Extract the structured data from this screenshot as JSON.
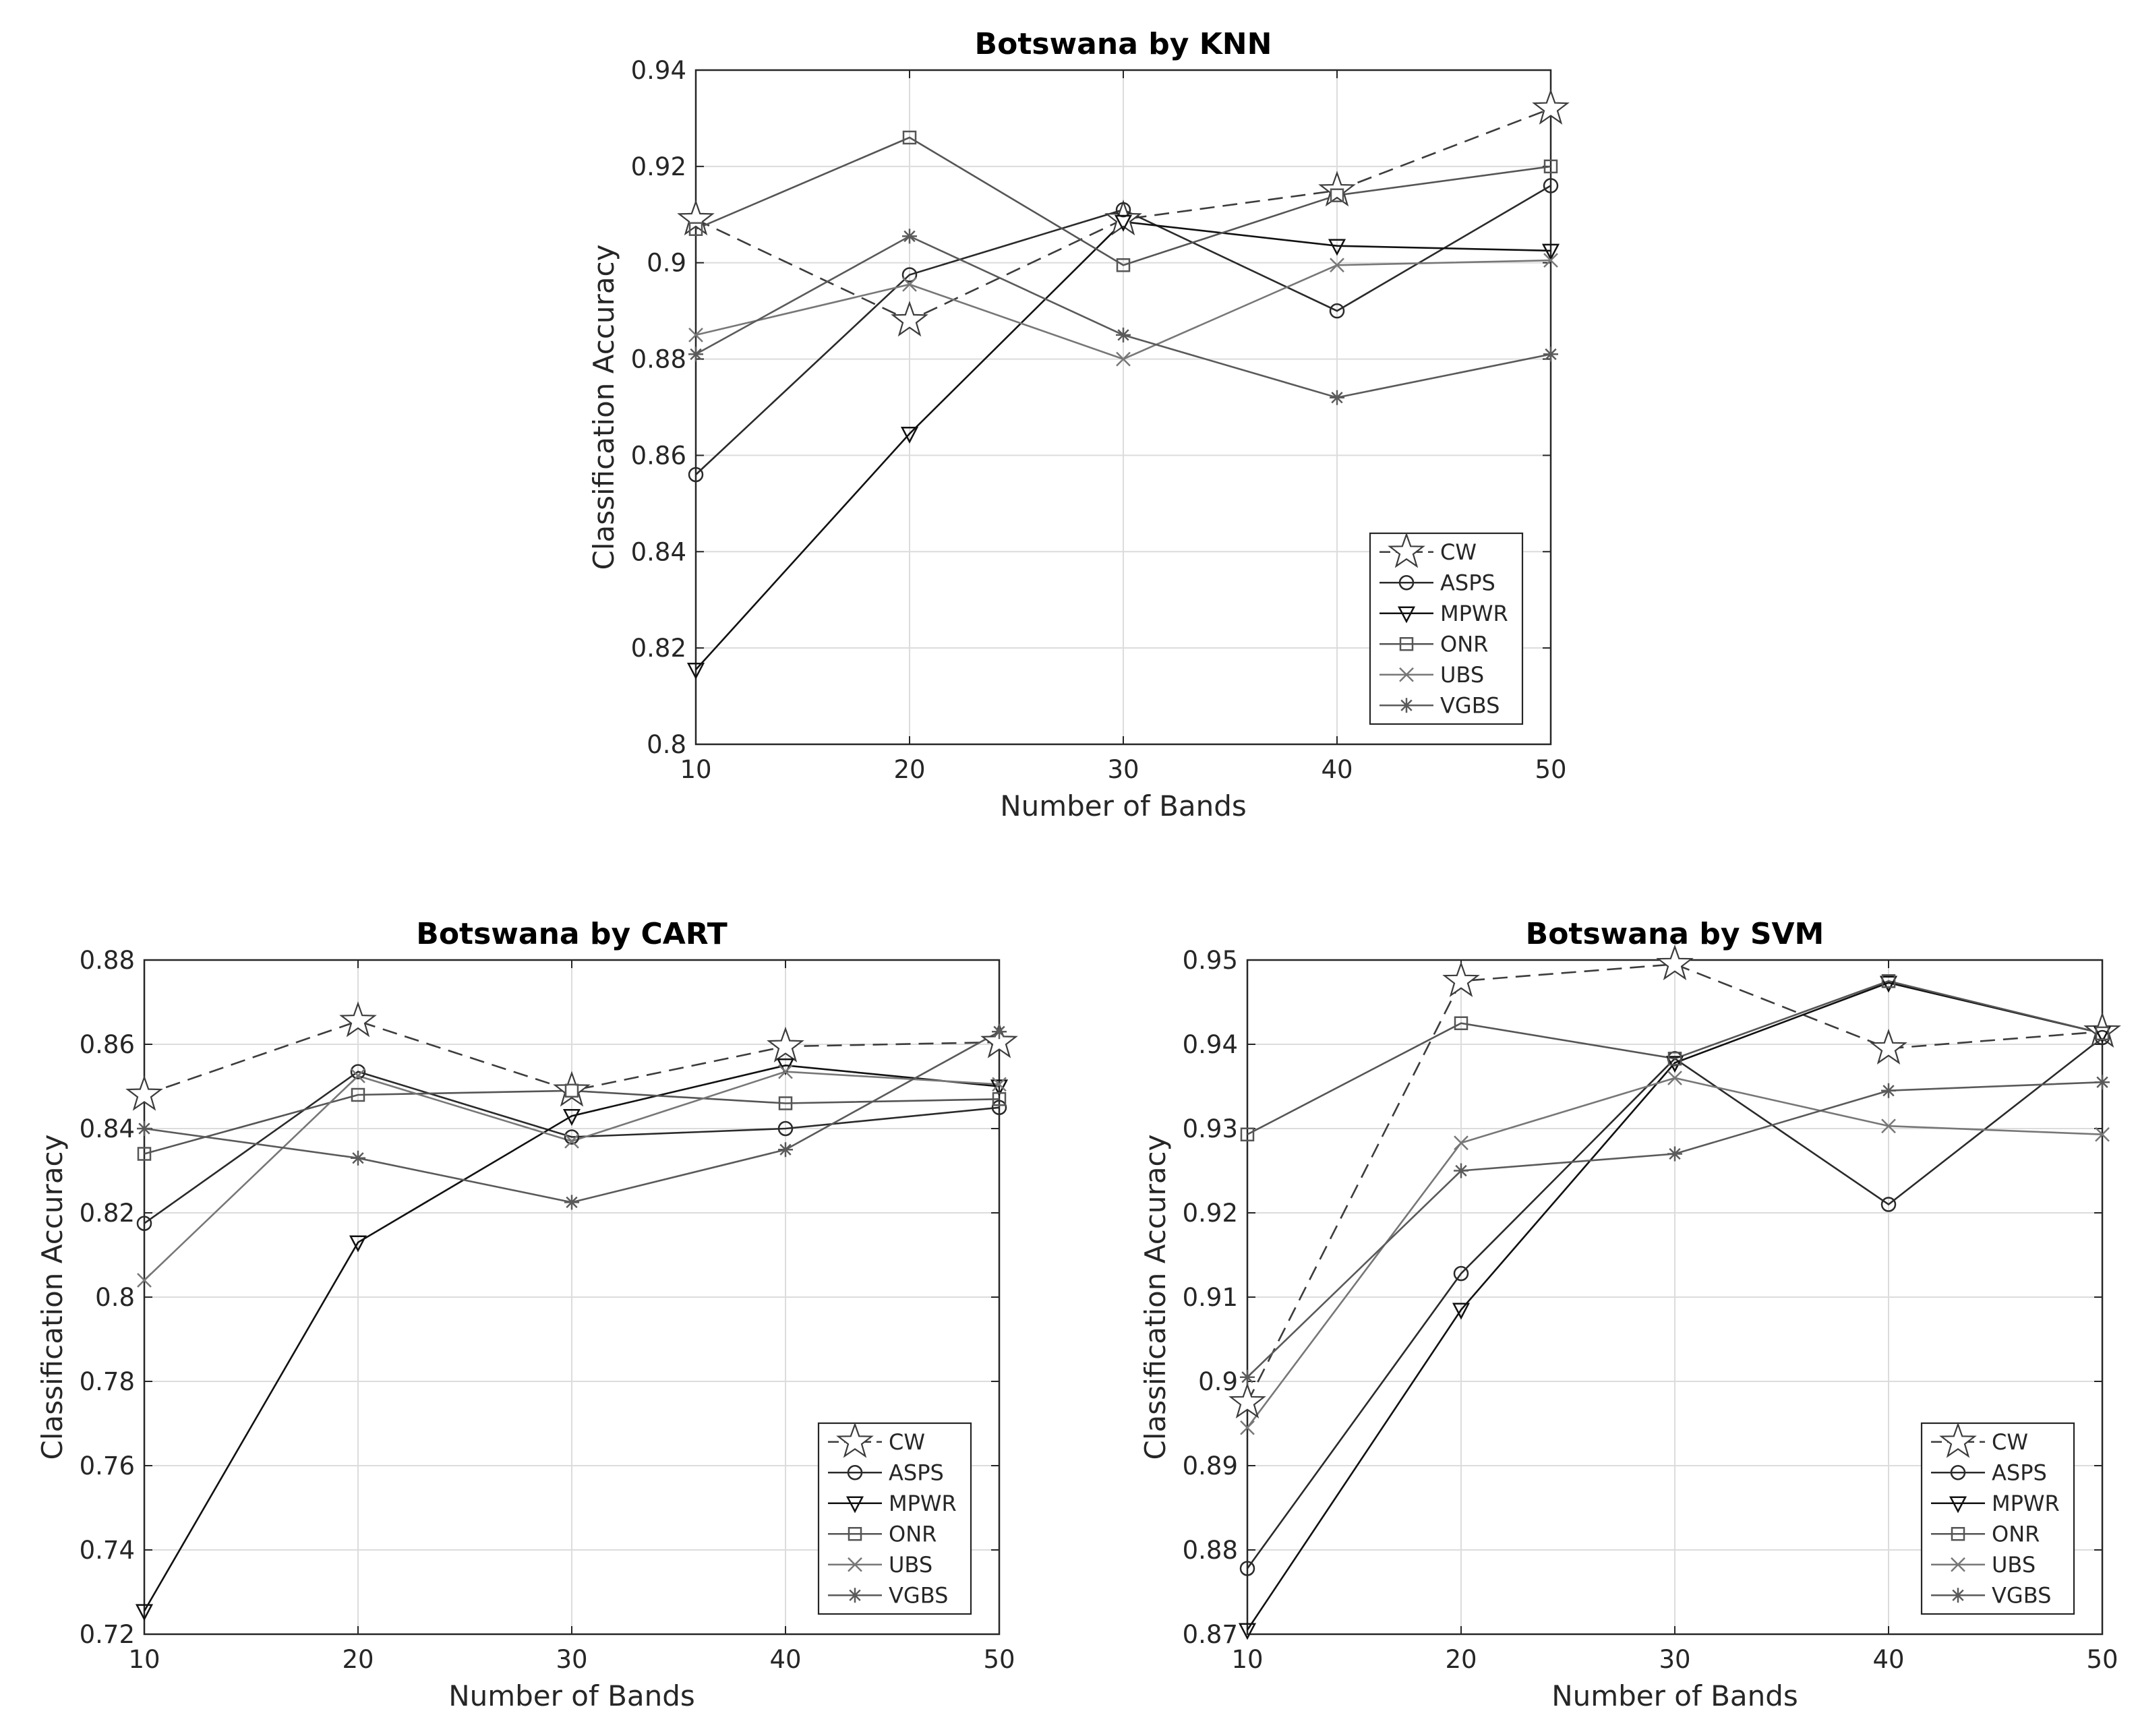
{
  "charts": [
    {
      "type": "line",
      "title": "Botswana by KNN",
      "xlabel": "Number of Bands",
      "ylabel": "Classification Accuracy",
      "x": [
        10,
        20,
        30,
        40,
        50
      ],
      "xticks": [
        "10",
        "20",
        "30",
        "40",
        "50"
      ],
      "ylim": [
        0.8,
        0.94
      ],
      "yticks": [
        "0.8",
        "0.82",
        "0.84",
        "0.86",
        "0.88",
        "0.9",
        "0.92",
        "0.94"
      ],
      "ytick_values": [
        0.8,
        0.82,
        0.84,
        0.86,
        0.88,
        0.9,
        0.92,
        0.94
      ],
      "legend_position": "bottom-right",
      "series": [
        {
          "name": "CW",
          "values": [
            0.909,
            0.888,
            0.909,
            0.915,
            0.932
          ]
        },
        {
          "name": "ASPS",
          "values": [
            0.856,
            0.8975,
            0.911,
            0.89,
            0.916
          ]
        },
        {
          "name": "MPWR",
          "values": [
            0.8155,
            0.8645,
            0.9085,
            0.9035,
            0.9025
          ]
        },
        {
          "name": "ONR",
          "values": [
            0.907,
            0.926,
            0.8995,
            0.914,
            0.92
          ]
        },
        {
          "name": "UBS",
          "values": [
            0.885,
            0.8955,
            0.88,
            0.8995,
            0.9005
          ]
        },
        {
          "name": "VGBS",
          "values": [
            0.881,
            0.9055,
            0.885,
            0.872,
            0.881
          ]
        }
      ]
    },
    {
      "type": "line",
      "title": "Botswana by CART",
      "xlabel": "Number of Bands",
      "ylabel": "Classification Accuracy",
      "x": [
        10,
        20,
        30,
        40,
        50
      ],
      "xticks": [
        "10",
        "20",
        "30",
        "40",
        "50"
      ],
      "ylim": [
        0.72,
        0.88
      ],
      "yticks": [
        "0.72",
        "0.74",
        "0.76",
        "0.78",
        "0.8",
        "0.82",
        "0.84",
        "0.86",
        "0.88"
      ],
      "ytick_values": [
        0.72,
        0.74,
        0.76,
        0.78,
        0.8,
        0.82,
        0.84,
        0.86,
        0.88
      ],
      "legend_position": "bottom-right",
      "series": [
        {
          "name": "CW",
          "values": [
            0.848,
            0.8655,
            0.849,
            0.8595,
            0.8605
          ]
        },
        {
          "name": "ASPS",
          "values": [
            0.8175,
            0.8535,
            0.838,
            0.84,
            0.845
          ]
        },
        {
          "name": "MPWR",
          "values": [
            0.7255,
            0.813,
            0.843,
            0.855,
            0.85
          ]
        },
        {
          "name": "ONR",
          "values": [
            0.834,
            0.848,
            0.849,
            0.846,
            0.847
          ]
        },
        {
          "name": "UBS",
          "values": [
            0.804,
            0.8525,
            0.837,
            0.8535,
            0.8505
          ]
        },
        {
          "name": "VGBS",
          "values": [
            0.84,
            0.833,
            0.8225,
            0.835,
            0.863
          ]
        }
      ]
    },
    {
      "type": "line",
      "title": "Botswana by SVM",
      "xlabel": "Number of Bands",
      "ylabel": "Classification Accuracy",
      "x": [
        10,
        20,
        30,
        40,
        50
      ],
      "xticks": [
        "10",
        "20",
        "30",
        "40",
        "50"
      ],
      "ylim": [
        0.87,
        0.95
      ],
      "yticks": [
        "0.87",
        "0.88",
        "0.89",
        "0.9",
        "0.91",
        "0.92",
        "0.93",
        "0.94",
        "0.95"
      ],
      "ytick_values": [
        0.87,
        0.88,
        0.89,
        0.9,
        0.91,
        0.92,
        0.93,
        0.94,
        0.95
      ],
      "legend_position": "bottom-right",
      "series": [
        {
          "name": "CW",
          "values": [
            0.8975,
            0.9475,
            0.9495,
            0.9395,
            0.9415
          ]
        },
        {
          "name": "ASPS",
          "values": [
            0.8778,
            0.9128,
            0.9383,
            0.921,
            0.9408
          ]
        },
        {
          "name": "MPWR",
          "values": [
            0.8705,
            0.9085,
            0.9378,
            0.9473,
            0.9413
          ]
        },
        {
          "name": "ONR",
          "values": [
            0.9293,
            0.9425,
            0.9383,
            0.9475,
            0.9413
          ]
        },
        {
          "name": "UBS",
          "values": [
            0.8945,
            0.9283,
            0.936,
            0.9303,
            0.9293
          ]
        },
        {
          "name": "VGBS",
          "values": [
            0.9005,
            0.925,
            0.927,
            0.9345,
            0.9355
          ]
        }
      ]
    }
  ],
  "style": {
    "CW": {
      "color": "#3c3c3c",
      "dash": "dashed",
      "marker": "pentagram"
    },
    "ASPS": {
      "color": "#2a2a2a",
      "dash": "solid",
      "marker": "circle"
    },
    "MPWR": {
      "color": "#111111",
      "dash": "solid",
      "marker": "triangle-down"
    },
    "ONR": {
      "color": "#555555",
      "dash": "solid",
      "marker": "square"
    },
    "UBS": {
      "color": "#777777",
      "dash": "solid",
      "marker": "x"
    },
    "VGBS": {
      "color": "#5a5a5a",
      "dash": "solid",
      "marker": "asterisk"
    }
  }
}
